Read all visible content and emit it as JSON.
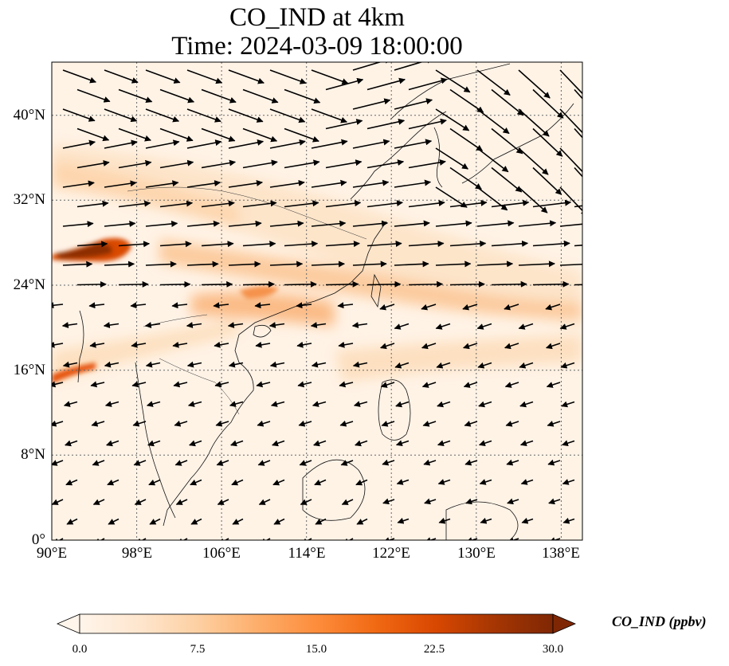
{
  "title": {
    "line1": "CO_IND at 4km",
    "line2": "Time: 2024-03-09 18:00:00"
  },
  "map": {
    "lon_range": [
      90,
      140
    ],
    "lat_range": [
      0,
      45
    ],
    "lon_ticks": [
      "90°E",
      "98°E",
      "106°E",
      "114°E",
      "122°E",
      "130°E",
      "138°E"
    ],
    "lat_ticks": [
      "0°",
      "8°N",
      "16°N",
      "24°N",
      "32°N",
      "40°N"
    ],
    "gridlines": true,
    "field_variable": "CO_IND",
    "wind_vectors": true
  },
  "colorbar": {
    "label": "CO_IND (ppbv)",
    "ticks": [
      "0.0",
      "7.5",
      "15.0",
      "22.5",
      "30.0"
    ],
    "range": [
      0,
      30
    ],
    "extend": "both",
    "colormap": [
      "#fff5eb",
      "#fee6ce",
      "#fdd0a2",
      "#fdae6b",
      "#fd8d3c",
      "#f16913",
      "#d94801",
      "#a63603",
      "#7f2704"
    ]
  }
}
